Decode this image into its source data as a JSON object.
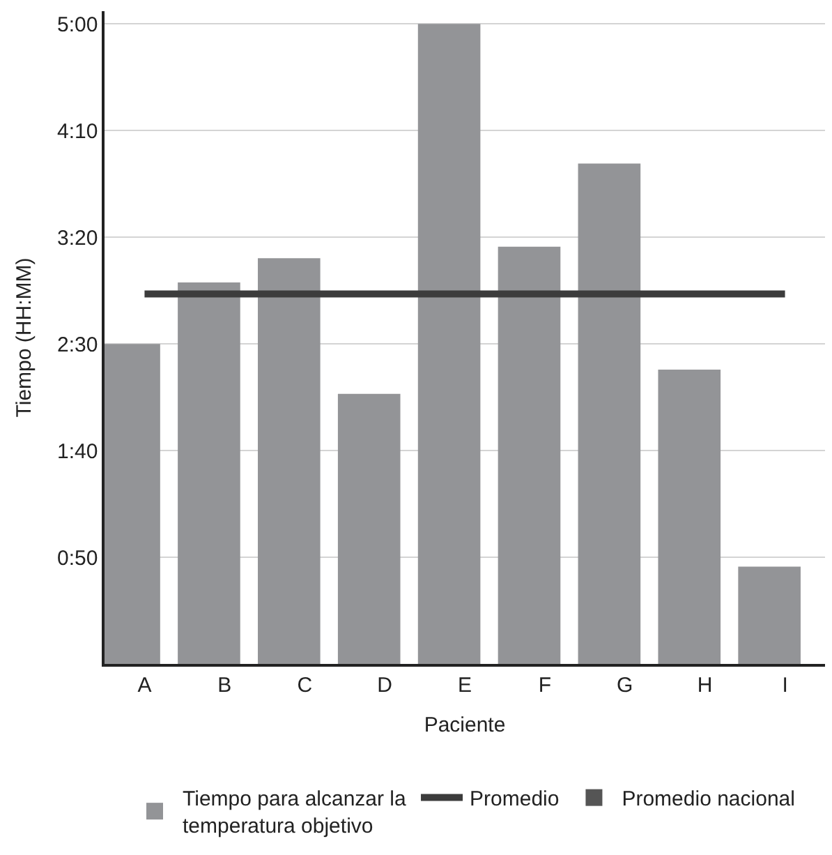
{
  "chart_data": {
    "type": "bar",
    "xlabel": "Paciente",
    "ylabel": "Tiempo (HH:MM)",
    "categories": [
      "A",
      "B",
      "C",
      "D",
      "E",
      "F",
      "G",
      "H",
      "I"
    ],
    "series": [
      {
        "name": "Tiempo para alcanzar la temperatura objetivo",
        "color": "#939497",
        "values": [
          2.5,
          2.98,
          3.17,
          2.11,
          5.0,
          3.26,
          3.91,
          2.3,
          0.76
        ]
      },
      {
        "name": "Promedio",
        "type": "line",
        "color": "#3c3c3c",
        "values": [
          2.89,
          2.89,
          2.89,
          2.89,
          2.89,
          2.89,
          2.89,
          2.89,
          2.89
        ]
      },
      {
        "name": "Promedio nacional",
        "color": "#555555",
        "values": [
          null,
          null,
          null,
          null,
          null,
          null,
          null,
          null,
          null
        ]
      }
    ],
    "ylim": [
      0,
      5.1
    ],
    "yticks": [
      {
        "value": 0.8333,
        "label": "0:50"
      },
      {
        "value": 1.6667,
        "label": "1:40"
      },
      {
        "value": 2.5,
        "label": "2:30"
      },
      {
        "value": 3.3333,
        "label": "3:20"
      },
      {
        "value": 4.1667,
        "label": "4:10"
      },
      {
        "value": 5,
        "label": "5:00"
      }
    ],
    "grid": "y",
    "legend": "bottom",
    "marker": "none"
  }
}
